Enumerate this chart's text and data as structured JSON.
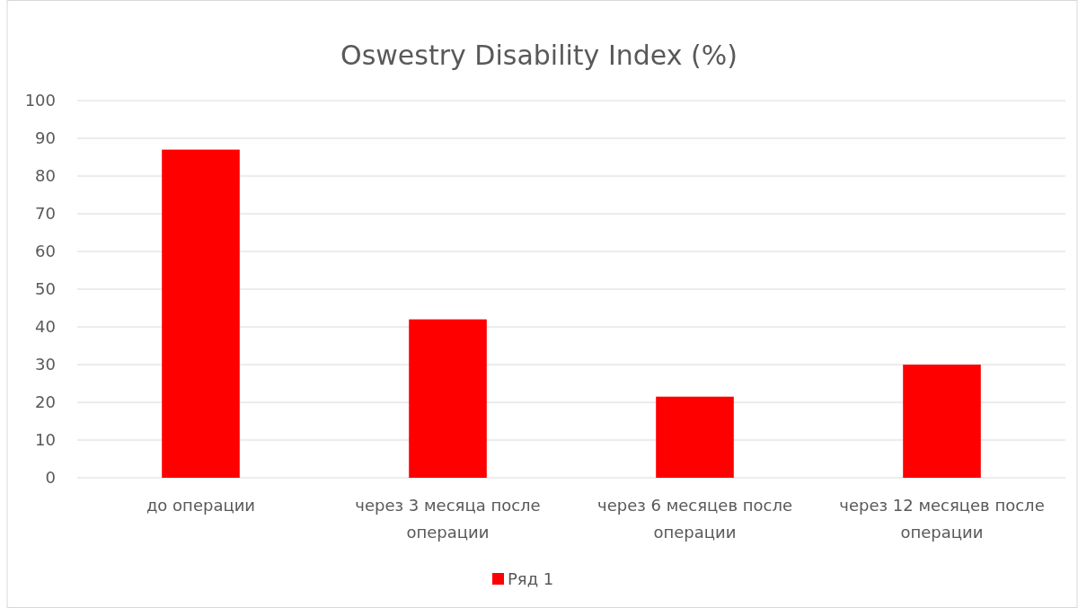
{
  "chart_data": {
    "type": "bar",
    "title": "Oswestry Disability Index (%)",
    "categories": [
      "до операции",
      "через 3 месяца после операции",
      "через 6 месяцев после операции",
      "через 12 месяцев после операции"
    ],
    "series": [
      {
        "name": "Ряд 1",
        "color": "#ff0000",
        "values": [
          87,
          42,
          21.5,
          30
        ]
      }
    ],
    "ylim": [
      0,
      100
    ],
    "yticks": [
      0,
      10,
      20,
      30,
      40,
      50,
      60,
      70,
      80,
      90,
      100
    ],
    "grid": "y",
    "legend": "bottom"
  }
}
